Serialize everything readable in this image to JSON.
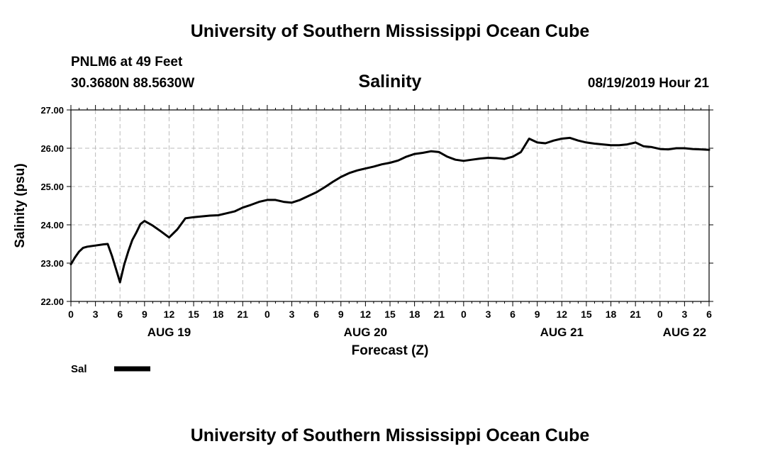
{
  "header": {
    "org_title": "University of Southern Mississippi Ocean Cube",
    "station": "PNLM6 at 49 Feet",
    "coords": "30.3680N 88.5630W",
    "datetime": "08/19/2019 Hour 21"
  },
  "footer": {
    "org_title": "University of Southern Mississippi Ocean Cube"
  },
  "chart_data": {
    "type": "line",
    "title": "Salinity",
    "xlabel": "Forecast (Z)",
    "ylabel": "Salinity (psu)",
    "ylim": [
      22.0,
      27.0
    ],
    "yticks": [
      "22.00",
      "23.00",
      "24.00",
      "25.00",
      "26.00",
      "27.00"
    ],
    "xlim_hours": [
      0,
      78
    ],
    "xtick_labels": [
      "0",
      "3",
      "6",
      "9",
      "12",
      "15",
      "18",
      "21",
      "0",
      "3",
      "6",
      "9",
      "12",
      "15",
      "18",
      "21",
      "0",
      "3",
      "6",
      "9",
      "12",
      "15",
      "18",
      "21",
      "0",
      "3",
      "6"
    ],
    "day_labels": [
      {
        "label": "AUG 19",
        "hour": 12
      },
      {
        "label": "AUG 20",
        "hour": 36
      },
      {
        "label": "AUG 21",
        "hour": 60
      },
      {
        "label": "AUG 22",
        "hour": 75
      }
    ],
    "grid": true,
    "legend": {
      "position": "bottom-left"
    },
    "series": [
      {
        "name": "Sal",
        "x": [
          0,
          0.5,
          1,
          1.5,
          2,
          3,
          4,
          4.5,
          5,
          5.5,
          6,
          6.5,
          7,
          7.5,
          8,
          8.5,
          9,
          10,
          11,
          12,
          13,
          14,
          15,
          16,
          17,
          18,
          19,
          20,
          21,
          22,
          23,
          24,
          25,
          26,
          27,
          28,
          29,
          30,
          31,
          32,
          33,
          34,
          35,
          36,
          37,
          38,
          39,
          40,
          41,
          42,
          43,
          44,
          45,
          46,
          47,
          48,
          49,
          50,
          51,
          52,
          53,
          54,
          55,
          56,
          57,
          58,
          59,
          60,
          61,
          62,
          63,
          64,
          65,
          66,
          67,
          68,
          69,
          70,
          71,
          72,
          73,
          74,
          75,
          76,
          77,
          78
        ],
        "values": [
          22.97,
          23.15,
          23.3,
          23.4,
          23.43,
          23.46,
          23.49,
          23.5,
          23.2,
          22.85,
          22.5,
          22.95,
          23.3,
          23.6,
          23.8,
          24.02,
          24.1,
          23.98,
          23.83,
          23.67,
          23.88,
          24.17,
          24.2,
          24.22,
          24.24,
          24.25,
          24.3,
          24.35,
          24.45,
          24.52,
          24.6,
          24.65,
          24.65,
          24.6,
          24.58,
          24.65,
          24.75,
          24.85,
          24.98,
          25.12,
          25.25,
          25.35,
          25.42,
          25.47,
          25.52,
          25.58,
          25.62,
          25.68,
          25.78,
          25.85,
          25.88,
          25.92,
          25.9,
          25.78,
          25.7,
          25.67,
          25.7,
          25.73,
          25.75,
          25.74,
          25.72,
          25.78,
          25.9,
          26.25,
          26.15,
          26.13,
          26.2,
          26.25,
          26.27,
          26.2,
          26.15,
          26.12,
          26.1,
          26.08,
          26.08,
          26.1,
          26.15,
          26.05,
          26.03,
          25.98,
          25.97,
          26.0,
          26.0,
          25.98,
          25.97,
          25.96
        ]
      }
    ]
  }
}
